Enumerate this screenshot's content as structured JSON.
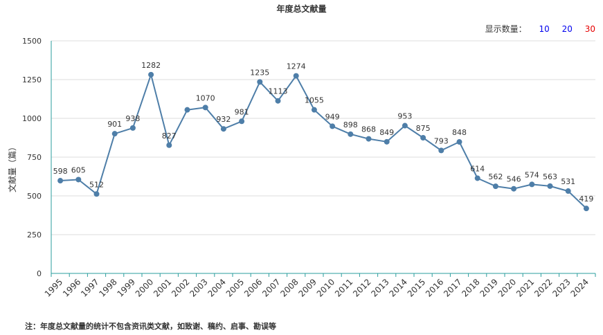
{
  "page": {
    "title": "年度总文献量",
    "display_count_label": "显示数量：",
    "display_count_options": [
      {
        "label": "10",
        "color": "#0000ee"
      },
      {
        "label": "20",
        "color": "#0000ee"
      },
      {
        "label": "30",
        "color": "#e60000"
      }
    ],
    "footnote": "注：年度总文献量的统计不包含资讯类文献，如致谢、稿约、启事、勘误等"
  },
  "chart_data": {
    "type": "line",
    "title": "年度总文献量",
    "xlabel": "",
    "ylabel": "文献量（篇）",
    "ylim": [
      0,
      1500
    ],
    "yticks": [
      0,
      250,
      500,
      750,
      1000,
      1250,
      1500
    ],
    "grid": true,
    "categories": [
      "1995",
      "1996",
      "1997",
      "1998",
      "1999",
      "2000",
      "2001",
      "2002",
      "2003",
      "2004",
      "2005",
      "2006",
      "2007",
      "2008",
      "2009",
      "2010",
      "2011",
      "2012",
      "2013",
      "2014",
      "2015",
      "2016",
      "2017",
      "2018",
      "2019",
      "2020",
      "2021",
      "2022",
      "2023",
      "2024"
    ],
    "series": [
      {
        "values": [
          598,
          605,
          512,
          901,
          938,
          1282,
          827,
          1055,
          1070,
          932,
          981,
          1235,
          1113,
          1274,
          1055,
          949,
          898,
          868,
          849,
          953,
          875,
          793,
          848,
          614,
          562,
          546,
          574,
          563,
          531,
          419
        ],
        "data_labels": [
          "598",
          "605",
          "512",
          "901",
          "938",
          "1282",
          "827",
          "",
          "1070",
          "932",
          "981",
          "1235",
          "1113",
          "1274",
          "1055",
          "949",
          "898",
          "868",
          "849",
          "953",
          "875",
          "793",
          "848",
          "614",
          "562",
          "546",
          "574",
          "563",
          "531",
          "419"
        ],
        "color": "#4e7ea8"
      }
    ],
    "colors": {
      "line": "#4e7ea8",
      "axis": "#2a9d9d",
      "grid": "#dddddd"
    }
  }
}
